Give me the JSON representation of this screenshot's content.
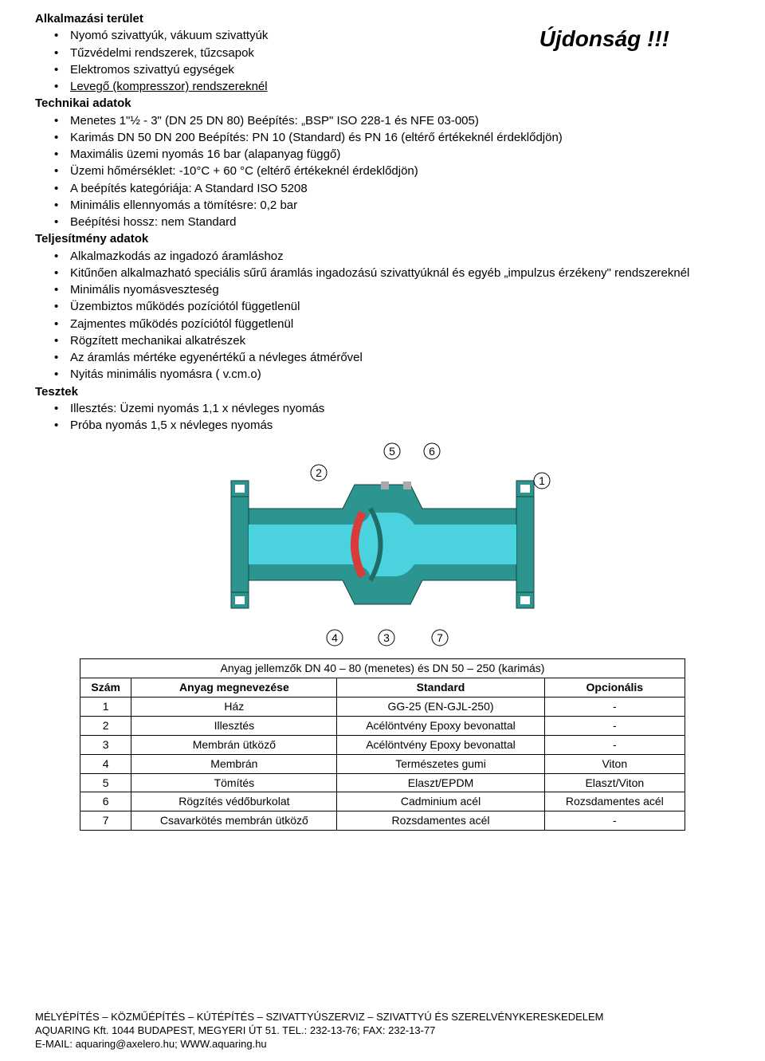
{
  "applicationArea": {
    "title": "Alkalmazási terület",
    "items": [
      "Nyomó szivattyúk, vákuum szivattyúk",
      "Tűzvédelmi rendszerek, tűzcsapok",
      "Elektromos szivattyú egységek",
      "Levegő (kompresszor) rendszereknél"
    ],
    "underlineLast": true
  },
  "newsBadge": "Újdonság !!!",
  "technicalData": {
    "title": "Technikai adatok",
    "items": [
      "Menetes 1\"½ -  3\" (DN 25 DN 80) Beépítés: „BSP\" ISO 228-1 és NFE 03-005)",
      "Karimás  DN 50 DN 200 Beépítés: PN 10 (Standard) és PN 16 (eltérő értékeknél érdeklődjön)",
      "Maximális üzemi nyomás 16 bar (alapanyag függő)",
      "Üzemi hőmérséklet: -10°C + 60 °C (eltérő értékeknél érdeklődjön)",
      "A beépítés kategóriája: A Standard ISO 5208",
      "Minimális ellennyomás a tömítésre: 0,2 bar",
      "Beépítési hossz: nem Standard"
    ]
  },
  "performanceData": {
    "title": "Teljesítmény adatok",
    "items": [
      "Alkalmazkodás az ingadozó áramláshoz",
      "Kitűnően alkalmazható speciális sűrű áramlás ingadozású szivattyúknál és egyéb „impulzus érzékeny\" rendszereknél",
      "Minimális nyomásveszteség",
      "Üzembiztos működés pozíciótól függetlenül",
      "Zajmentes működés pozíciótól függetlenül",
      "Rögzített mechanikai alkatrészek",
      "Az áramlás mértéke egyenértékű a névleges átmérővel",
      "Nyitás minimális nyomásra ( v.cm.o)"
    ]
  },
  "tests": {
    "title": "Tesztek",
    "items": [
      "Illesztés: Üzemi nyomás 1,1 x névleges nyomás",
      "Próba nyomás 1,5 x névleges nyomás"
    ]
  },
  "diagram": {
    "callouts": [
      "1",
      "2",
      "3",
      "4",
      "5",
      "6",
      "7"
    ],
    "colors": {
      "body": "#2d9590",
      "inner": "#4ad2df",
      "disc": "#d93a3a",
      "line": "#3a3a3a",
      "bg": "#ffffff"
    }
  },
  "materialsTable": {
    "caption": "Anyag jellemzők DN 40 – 80  (menetes) és DN 50 – 250 (karimás)",
    "columns": [
      "Szám",
      "Anyag megnevezése",
      "Standard",
      "Opcionális"
    ],
    "rows": [
      [
        "1",
        "Ház",
        "GG-25 (EN-GJL-250)",
        "-"
      ],
      [
        "2",
        "Illesztés",
        "Acélöntvény Epoxy bevonattal",
        "-"
      ],
      [
        "3",
        "Membrán ütköző",
        "Acélöntvény Epoxy bevonattal",
        "-"
      ],
      [
        "4",
        "Membrán",
        "Természetes gumi",
        "Viton"
      ],
      [
        "5",
        "Tömítés",
        "Elaszt/EPDM",
        "Elaszt/Viton"
      ],
      [
        "6",
        "Rögzítés védőburkolat",
        "Cadminium acél",
        "Rozsdamentes acél"
      ],
      [
        "7",
        "Csavarkötés membrán ütköző",
        "Rozsdamentes acél",
        "-"
      ]
    ]
  },
  "footer": {
    "line1": "MÉLYÉPÍTÉS – KÖZMŰÉPÍTÉS – KÚTÉPÍTÉS – SZIVATTYÚSZERVIZ – SZIVATTYÚ ÉS SZERELVÉNYKERESKEDELEM",
    "line2": "AQUARING Kft. 1044 BUDAPEST,   MEGYERI ÚT 51.  TEL.: 232-13-76; FAX: 232-13-77",
    "line3": "E-MAIL: aquaring@axelero.hu; WWW.aquaring.hu"
  }
}
